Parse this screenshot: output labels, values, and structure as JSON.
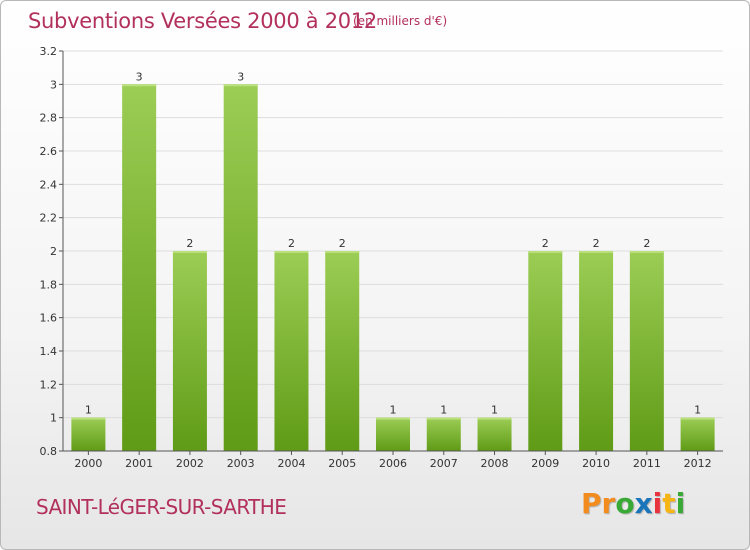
{
  "chart_data": {
    "type": "bar",
    "title": "Subventions Versées 2000 à 2012",
    "subtitle": "(en milliers d'€)",
    "categories": [
      "2000",
      "2001",
      "2002",
      "2003",
      "2004",
      "2005",
      "2006",
      "2007",
      "2008",
      "2009",
      "2010",
      "2011",
      "2012"
    ],
    "values": [
      1,
      3,
      2,
      3,
      2,
      2,
      1,
      1,
      1,
      2,
      2,
      2,
      1
    ],
    "data_labels": [
      "1",
      "3",
      "2",
      "3",
      "2",
      "2",
      "1",
      "1",
      "1",
      "2",
      "2",
      "2",
      "1"
    ],
    "ylim": [
      0.8,
      3.2
    ],
    "yticks": [
      0.8,
      1,
      1.2,
      1.4,
      1.6,
      1.8,
      2,
      2.2,
      2.4,
      2.6,
      2.8,
      3,
      3.2
    ],
    "ytick_labels": [
      "0.8",
      "1",
      "1.2",
      "1.4",
      "1.6",
      "1.8",
      "2",
      "2.2",
      "2.4",
      "2.6",
      "2.8",
      "3",
      "3.2"
    ],
    "grid": true,
    "bar_color_top": "#9ccd55",
    "bar_color_bottom": "#5f9b16"
  },
  "commune": "SAINT-LéGER-SUR-SARTHE",
  "logo": {
    "letters": [
      "P",
      "r",
      "o",
      "x",
      "i",
      "t",
      "i"
    ],
    "colors": [
      "#f28c1e",
      "#f28c1e",
      "#39a935",
      "#1b75bb",
      "#e8333f",
      "#f6b515",
      "#39a935"
    ]
  },
  "colors": {
    "accent": "#b2305c",
    "grid": "#dddddd",
    "axis": "#555555"
  }
}
